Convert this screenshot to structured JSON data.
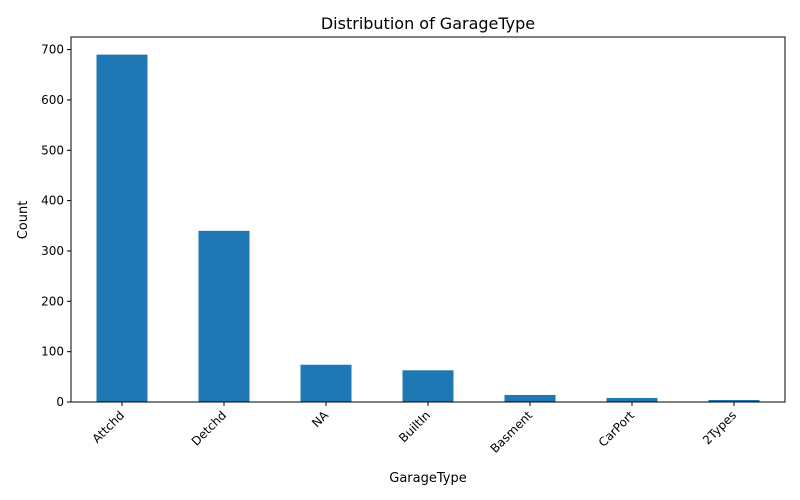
{
  "chart_data": {
    "type": "bar",
    "title": "Distribution of GarageType",
    "xlabel": "GarageType",
    "ylabel": "Count",
    "categories": [
      "Attchd",
      "Detchd",
      "NA",
      "BuiltIn",
      "Basment",
      "CarPort",
      "2Types"
    ],
    "values": [
      690,
      340,
      74,
      63,
      14,
      8,
      4
    ],
    "ylim": [
      0,
      725
    ],
    "yticks": [
      0,
      100,
      200,
      300,
      400,
      500,
      600,
      700
    ],
    "grid": false,
    "bar_color": "#1f77b4"
  }
}
